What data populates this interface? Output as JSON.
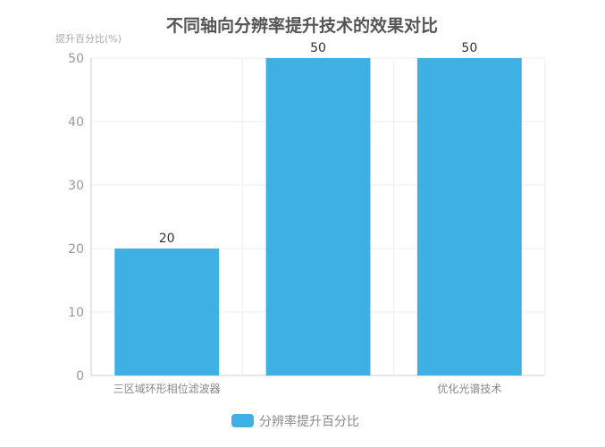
{
  "chart_data": {
    "type": "bar",
    "title": "不同轴向分辨率提升技术的效果对比",
    "ylabel": "提升百分比(%)",
    "xlabel": "",
    "categories": [
      "三区域环形相位滤波器",
      "",
      "优化光谱技术"
    ],
    "series": [
      {
        "name": "分辨率提升百分比",
        "values": [
          20,
          50,
          50
        ],
        "color": "#3eb0e3"
      }
    ],
    "ylim": [
      0,
      50
    ],
    "yticks": [
      0,
      10,
      20,
      30,
      40,
      50
    ],
    "grid": true,
    "legend": "bottom",
    "data_labels": true
  }
}
